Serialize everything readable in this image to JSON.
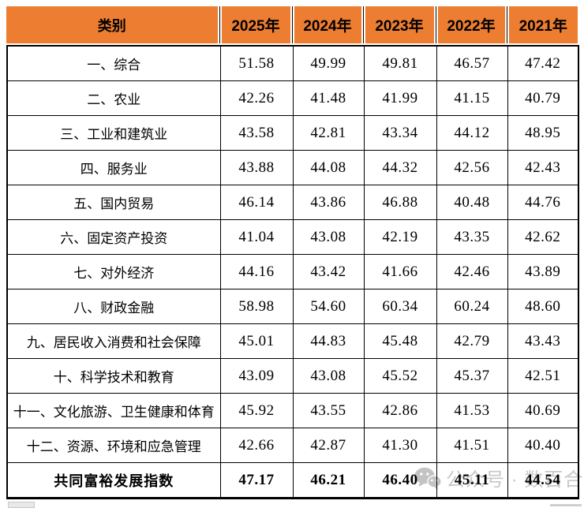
{
  "chart_data": {
    "type": "table",
    "title": "共同富裕发展指数",
    "columns": [
      "类别",
      "2025年",
      "2024年",
      "2023年",
      "2022年",
      "2021年"
    ],
    "rows": [
      {
        "label": "一、综合",
        "values": [
          "51.58",
          "49.99",
          "49.81",
          "46.57",
          "47.42"
        ]
      },
      {
        "label": "二、农业",
        "values": [
          "42.26",
          "41.48",
          "41.99",
          "41.15",
          "40.79"
        ]
      },
      {
        "label": "三、工业和建筑业",
        "values": [
          "43.58",
          "42.81",
          "43.34",
          "44.12",
          "48.95"
        ]
      },
      {
        "label": "四、服务业",
        "values": [
          "43.88",
          "44.08",
          "44.32",
          "42.56",
          "42.43"
        ]
      },
      {
        "label": "五、国内贸易",
        "values": [
          "46.14",
          "43.86",
          "46.88",
          "40.48",
          "44.76"
        ]
      },
      {
        "label": "六、固定资产投资",
        "values": [
          "41.04",
          "43.08",
          "42.19",
          "43.35",
          "42.62"
        ]
      },
      {
        "label": "七、对外经济",
        "values": [
          "44.16",
          "43.42",
          "41.66",
          "42.46",
          "43.89"
        ]
      },
      {
        "label": "八、财政金融",
        "values": [
          "58.98",
          "54.60",
          "60.34",
          "60.24",
          "48.60"
        ]
      },
      {
        "label": "九、居民收入消费和社会保障",
        "values": [
          "45.01",
          "44.83",
          "45.48",
          "42.79",
          "43.43"
        ]
      },
      {
        "label": "十、科学技术和教育",
        "values": [
          "43.09",
          "43.08",
          "45.52",
          "45.37",
          "42.51"
        ]
      },
      {
        "label": "十一、文化旅游、卫生健康和体育",
        "values": [
          "45.92",
          "43.55",
          "42.86",
          "41.53",
          "40.69"
        ]
      },
      {
        "label": "十二、资源、环境和应急管理",
        "values": [
          "42.66",
          "42.87",
          "41.30",
          "41.51",
          "40.40"
        ]
      }
    ],
    "total_row": {
      "label": "共同富裕发展指数",
      "values": [
        "47.17",
        "46.21",
        "46.40",
        "45.11",
        "44.54"
      ]
    }
  },
  "watermark": {
    "icon": "wechat-icon",
    "text": "公众号 · 数百合"
  },
  "colors": {
    "header_bg": "#ED7D31",
    "grid_border": "#000000",
    "text": "#000000",
    "watermark_gray": "#C8C8C8"
  }
}
